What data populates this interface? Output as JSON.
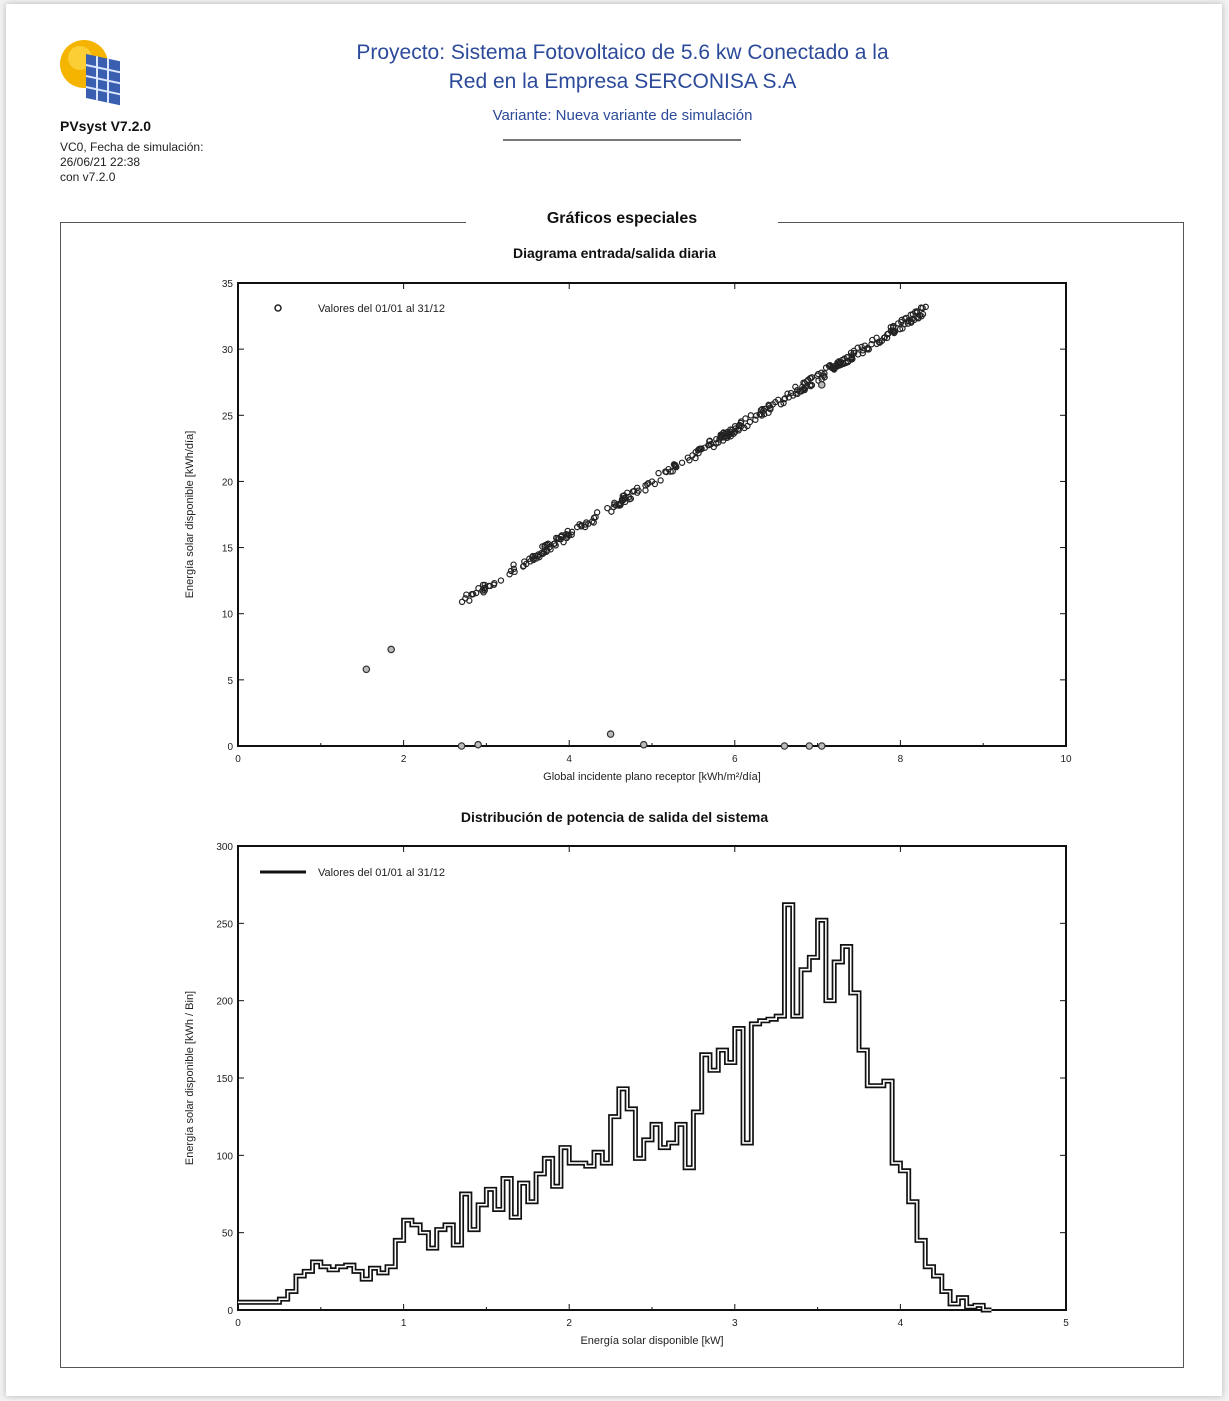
{
  "header": {
    "app_name": "PVsyst V7.2.0",
    "meta_lines": [
      "VC0, Fecha de simulación:",
      "26/06/21 22:38",
      "con v7.2.0"
    ],
    "project_line1": "Proyecto: Sistema Fotovoltaico de 5.6 kw Conectado a la",
    "project_line2": "Red en la Empresa SERCONISA S.A",
    "variant": "Variante: Nueva variante de simulación"
  },
  "section_title": "Gráficos especiales",
  "colors": {
    "title_blue": "#2c4a9a",
    "logo_yellow": "#f5b400",
    "logo_blue": "#3a5fb0"
  },
  "chart_data": [
    {
      "type": "scatter",
      "title": "Diagrama entrada/salida diaria",
      "xlabel": "Global incidente plano receptor [kWh/m²/día]",
      "ylabel": "Energía solar disponible [kWh/día]",
      "xlim": [
        0,
        10
      ],
      "ylim": [
        0,
        35
      ],
      "xticks": [
        0,
        2,
        4,
        6,
        8,
        10
      ],
      "yticks": [
        0,
        5,
        10,
        15,
        20,
        25,
        30,
        35
      ],
      "legend": "Valores del 01/01 al 31/12",
      "trend": {
        "x_start": 2.7,
        "y_start": 10.9,
        "x_end": 8.3,
        "y_end": 33.0,
        "count": 355
      },
      "outliers": [
        {
          "x": 1.55,
          "y": 5.8
        },
        {
          "x": 1.85,
          "y": 7.3
        },
        {
          "x": 2.7,
          "y": 0.0
        },
        {
          "x": 2.9,
          "y": 0.1
        },
        {
          "x": 4.5,
          "y": 0.9
        },
        {
          "x": 4.9,
          "y": 0.1
        },
        {
          "x": 6.6,
          "y": 0.0
        },
        {
          "x": 6.9,
          "y": 0.0
        },
        {
          "x": 7.05,
          "y": 0.0
        },
        {
          "x": 7.05,
          "y": 27.3
        }
      ]
    },
    {
      "type": "line",
      "title": "Distribución de potencia de salida del sistema",
      "xlabel": "Energía solar disponible [kW]",
      "ylabel": "Energía solar disponible [kWh / Bin]",
      "xlim": [
        0,
        5
      ],
      "ylim": [
        0,
        300
      ],
      "xticks": [
        0,
        1,
        2,
        3,
        4,
        5
      ],
      "yticks": [
        0,
        50,
        100,
        150,
        200,
        250,
        300
      ],
      "legend": "Valores del 01/01 al 31/12",
      "bin_width": 0.05,
      "values": [
        5,
        5,
        5,
        5,
        5,
        7,
        12,
        22,
        25,
        31,
        28,
        26,
        28,
        29,
        25,
        20,
        27,
        24,
        28,
        45,
        58,
        55,
        50,
        40,
        52,
        55,
        42,
        75,
        52,
        68,
        78,
        65,
        85,
        60,
        82,
        70,
        88,
        98,
        80,
        105,
        95,
        95,
        93,
        102,
        95,
        125,
        143,
        130,
        98,
        110,
        120,
        105,
        108,
        120,
        92,
        128,
        165,
        155,
        168,
        160,
        182,
        108,
        185,
        187,
        188,
        190,
        262,
        190,
        220,
        228,
        252,
        200,
        225,
        235,
        205,
        168,
        145,
        145,
        148,
        95,
        90,
        70,
        45,
        28,
        22,
        12,
        4,
        8,
        2,
        3,
        0
      ]
    }
  ]
}
